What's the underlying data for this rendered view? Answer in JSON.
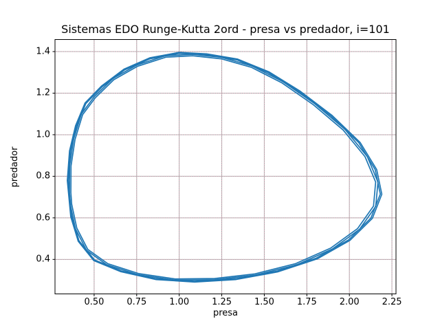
{
  "figure": {
    "title": "Sistemas EDO Runge-Kutta 2ord - presa vs predador, i=101",
    "xlabel": "presa",
    "ylabel": "predador"
  },
  "chart_data": {
    "type": "line",
    "title": "Sistemas EDO Runge-Kutta 2ord - presa vs predador, i=101",
    "xlabel": "presa",
    "ylabel": "predador",
    "xlim": [
      0.27,
      2.274
    ],
    "ylim": [
      0.234,
      1.458
    ],
    "xticks": [
      0.5,
      0.75,
      1.0,
      1.25,
      1.5,
      1.75,
      2.0,
      2.25
    ],
    "xtick_labels": [
      "0.50",
      "0.75",
      "1.00",
      "1.25",
      "1.50",
      "1.75",
      "2.00",
      "2.25"
    ],
    "yticks": [
      0.4,
      0.6,
      0.8,
      1.0,
      1.2,
      1.4
    ],
    "ytick_labels": [
      "0.4",
      "0.6",
      "0.8",
      "1.0",
      "1.2",
      "1.4"
    ],
    "grid": {
      "on": true,
      "major_line_color": "#a6a6a6",
      "dotted_overlay_color": "#f0a8c0",
      "dotted_dasharray": "1 2.3"
    },
    "line_color": "#1f77b4",
    "line_width": 1.7,
    "spine_color": "#000000",
    "tick_color": "#000000",
    "tick_length": 3.5,
    "orbit_center": [
      1.05,
      0.8
    ],
    "orbit": [
      [
        0.355,
        0.72
      ],
      [
        0.352,
        0.78
      ],
      [
        0.356,
        0.85
      ],
      [
        0.365,
        0.92
      ],
      [
        0.38,
        0.98
      ],
      [
        0.4,
        1.04
      ],
      [
        0.425,
        1.1
      ],
      [
        0.455,
        1.148
      ],
      [
        0.5,
        1.182
      ],
      [
        0.55,
        1.228
      ],
      [
        0.61,
        1.27
      ],
      [
        0.68,
        1.308
      ],
      [
        0.75,
        1.335
      ],
      [
        0.83,
        1.362
      ],
      [
        0.92,
        1.38
      ],
      [
        1.0,
        1.388
      ],
      [
        1.08,
        1.387
      ],
      [
        1.16,
        1.381
      ],
      [
        1.25,
        1.372
      ],
      [
        1.34,
        1.356
      ],
      [
        1.43,
        1.33
      ],
      [
        1.52,
        1.296
      ],
      [
        1.61,
        1.255
      ],
      [
        1.7,
        1.205
      ],
      [
        1.795,
        1.15
      ],
      [
        1.885,
        1.09
      ],
      [
        1.975,
        1.025
      ],
      [
        2.05,
        0.96
      ],
      [
        2.105,
        0.895
      ],
      [
        2.145,
        0.832
      ],
      [
        2.168,
        0.772
      ],
      [
        2.175,
        0.715
      ],
      [
        2.155,
        0.655
      ],
      [
        2.12,
        0.6
      ],
      [
        2.06,
        0.545
      ],
      [
        1.99,
        0.496
      ],
      [
        1.9,
        0.45
      ],
      [
        1.8,
        0.408
      ],
      [
        1.69,
        0.374
      ],
      [
        1.57,
        0.346
      ],
      [
        1.45,
        0.325
      ],
      [
        1.33,
        0.31
      ],
      [
        1.21,
        0.302
      ],
      [
        1.09,
        0.298
      ],
      [
        0.975,
        0.3
      ],
      [
        0.865,
        0.31
      ],
      [
        0.76,
        0.326
      ],
      [
        0.66,
        0.348
      ],
      [
        0.575,
        0.374
      ],
      [
        0.505,
        0.4
      ],
      [
        0.455,
        0.444
      ],
      [
        0.415,
        0.492
      ],
      [
        0.39,
        0.548
      ],
      [
        0.372,
        0.608
      ],
      [
        0.36,
        0.664
      ]
    ],
    "passes": [
      {
        "scale": 1.0,
        "step": 2,
        "offset": 0
      },
      {
        "scale": 1.014,
        "step": 2,
        "offset": 1
      },
      {
        "scale": 1.006,
        "step": 2,
        "offset": 1
      },
      {
        "scale": 0.988,
        "step": 2,
        "offset": 0
      }
    ]
  }
}
